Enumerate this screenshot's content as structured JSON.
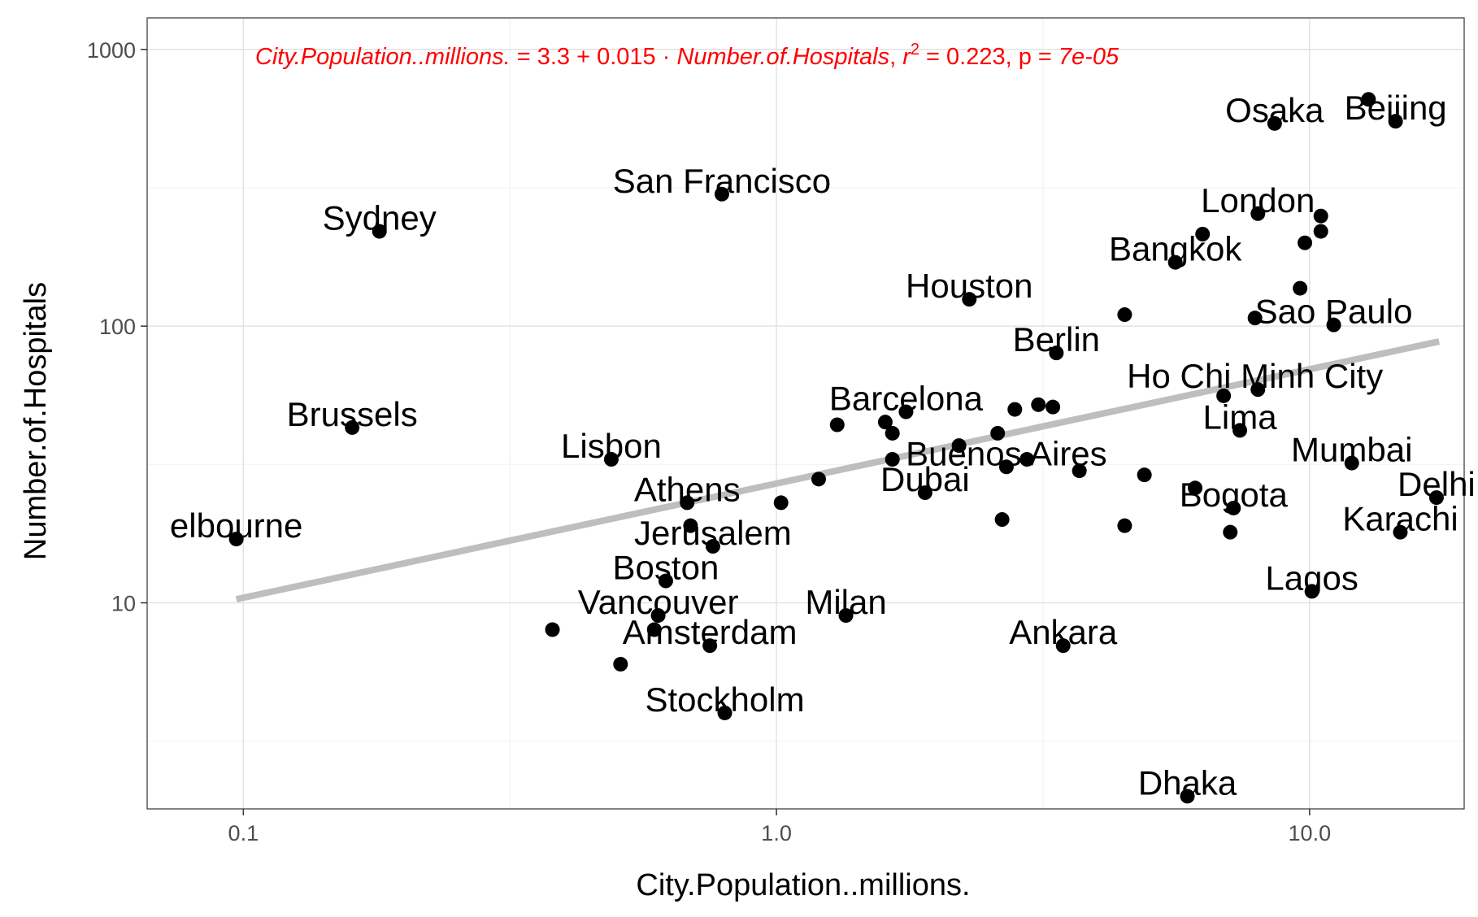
{
  "chart_data": {
    "type": "scatter",
    "xlabel": "City.Population..millions.",
    "ylabel": "Number.of.Hospitals",
    "x_scale": "log10",
    "y_scale": "log10",
    "xlim": [
      0.066,
      19.5
    ],
    "ylim": [
      1.8,
      1300
    ],
    "x_ticks": [
      {
        "value": 0.1,
        "label": "0.1"
      },
      {
        "value": 1,
        "label": "1.0"
      },
      {
        "value": 10,
        "label": "10.0"
      }
    ],
    "y_ticks": [
      {
        "value": 10,
        "label": "10"
      },
      {
        "value": 100,
        "label": "100"
      },
      {
        "value": 1000,
        "label": "1000"
      }
    ],
    "grid": true,
    "annotation": {
      "lhs": "City.Population..millions.",
      "eq_mid": " = 3.3 + 0.015 · ",
      "rhs": "Number.of.Hospitals",
      "r2_sym": "r",
      "r2_exp": "2",
      "r2_val": " = 0.223,  p = ",
      "p_val": "7e-05",
      "color": "#ff0000"
    },
    "trend_line": {
      "color": "#bebebe",
      "x": [
        0.097,
        17.5
      ],
      "y": [
        10.3,
        88
      ]
    },
    "point_color": "#000000",
    "points": [
      {
        "x": 0.097,
        "y": 17
      },
      {
        "x": 0.16,
        "y": 43
      },
      {
        "x": 0.18,
        "y": 220
      },
      {
        "x": 0.38,
        "y": 8
      },
      {
        "x": 0.49,
        "y": 33
      },
      {
        "x": 0.51,
        "y": 6
      },
      {
        "x": 0.59,
        "y": 8
      },
      {
        "x": 0.6,
        "y": 9
      },
      {
        "x": 0.62,
        "y": 12
      },
      {
        "x": 0.68,
        "y": 23
      },
      {
        "x": 0.69,
        "y": 19
      },
      {
        "x": 0.75,
        "y": 7
      },
      {
        "x": 0.76,
        "y": 16
      },
      {
        "x": 0.79,
        "y": 300
      },
      {
        "x": 0.8,
        "y": 4
      },
      {
        "x": 1.02,
        "y": 23
      },
      {
        "x": 1.2,
        "y": 28
      },
      {
        "x": 1.3,
        "y": 44
      },
      {
        "x": 1.35,
        "y": 9
      },
      {
        "x": 1.6,
        "y": 45
      },
      {
        "x": 1.65,
        "y": 41
      },
      {
        "x": 1.65,
        "y": 33
      },
      {
        "x": 1.75,
        "y": 49
      },
      {
        "x": 1.9,
        "y": 25
      },
      {
        "x": 2.2,
        "y": 37
      },
      {
        "x": 2.3,
        "y": 125
      },
      {
        "x": 2.6,
        "y": 41
      },
      {
        "x": 2.65,
        "y": 20
      },
      {
        "x": 2.7,
        "y": 31
      },
      {
        "x": 2.8,
        "y": 50
      },
      {
        "x": 2.95,
        "y": 33
      },
      {
        "x": 3.1,
        "y": 52
      },
      {
        "x": 3.3,
        "y": 51
      },
      {
        "x": 3.35,
        "y": 80
      },
      {
        "x": 3.45,
        "y": 7
      },
      {
        "x": 3.7,
        "y": 30
      },
      {
        "x": 4.5,
        "y": 110
      },
      {
        "x": 4.5,
        "y": 19
      },
      {
        "x": 4.9,
        "y": 29
      },
      {
        "x": 5.6,
        "y": 170
      },
      {
        "x": 5.9,
        "y": 2
      },
      {
        "x": 6.1,
        "y": 26
      },
      {
        "x": 6.3,
        "y": 215
      },
      {
        "x": 6.9,
        "y": 56
      },
      {
        "x": 7.1,
        "y": 18
      },
      {
        "x": 7.2,
        "y": 22
      },
      {
        "x": 7.4,
        "y": 42
      },
      {
        "x": 7.9,
        "y": 107
      },
      {
        "x": 8.0,
        "y": 255
      },
      {
        "x": 8.0,
        "y": 59
      },
      {
        "x": 8.6,
        "y": 540
      },
      {
        "x": 9.6,
        "y": 137
      },
      {
        "x": 9.8,
        "y": 200
      },
      {
        "x": 10.1,
        "y": 11
      },
      {
        "x": 10.5,
        "y": 250
      },
      {
        "x": 10.5,
        "y": 220
      },
      {
        "x": 11.1,
        "y": 101
      },
      {
        "x": 12.0,
        "y": 32
      },
      {
        "x": 12.9,
        "y": 660
      },
      {
        "x": 14.5,
        "y": 550
      },
      {
        "x": 14.8,
        "y": 18
      },
      {
        "x": 17.3,
        "y": 24
      }
    ],
    "labels": [
      {
        "text": "elbourne",
        "x": 0.097,
        "y": 17
      },
      {
        "text": "Brussels",
        "x": 0.16,
        "y": 43
      },
      {
        "text": "Sydney",
        "x": 0.18,
        "y": 220
      },
      {
        "text": "Lisbon",
        "x": 0.49,
        "y": 33
      },
      {
        "text": "Athens",
        "x": 0.68,
        "y": 23
      },
      {
        "text": "Jerusalem",
        "x": 0.76,
        "y": 16
      },
      {
        "text": "Boston",
        "x": 0.62,
        "y": 12
      },
      {
        "text": "Vancouver",
        "x": 0.6,
        "y": 9
      },
      {
        "text": "Amsterdam",
        "x": 0.75,
        "y": 7
      },
      {
        "text": "Stockholm",
        "x": 0.8,
        "y": 4
      },
      {
        "text": "San Francisco",
        "x": 0.79,
        "y": 300
      },
      {
        "text": "Milan",
        "x": 1.35,
        "y": 9
      },
      {
        "text": "Barcelona",
        "x": 1.75,
        "y": 49
      },
      {
        "text": "Dubai",
        "x": 1.9,
        "y": 25
      },
      {
        "text": "Buenos Aires",
        "x": 2.7,
        "y": 31
      },
      {
        "text": "Houston",
        "x": 2.3,
        "y": 125
      },
      {
        "text": "Berlin",
        "x": 3.35,
        "y": 80
      },
      {
        "text": "Ankara",
        "x": 3.45,
        "y": 7
      },
      {
        "text": "Ho Chi Minh City",
        "x": 7.9,
        "y": 59
      },
      {
        "text": "Bangkok",
        "x": 5.6,
        "y": 170
      },
      {
        "text": "London",
        "x": 8.0,
        "y": 255
      },
      {
        "text": "Osaka",
        "x": 8.6,
        "y": 540
      },
      {
        "text": "Beijing",
        "x": 14.5,
        "y": 550
      },
      {
        "text": "Sao Paulo",
        "x": 11.1,
        "y": 101
      },
      {
        "text": "Lima",
        "x": 7.4,
        "y": 42
      },
      {
        "text": "Mumbai",
        "x": 12.0,
        "y": 32
      },
      {
        "text": "Bogota",
        "x": 7.2,
        "y": 22
      },
      {
        "text": "Delhi",
        "x": 17.3,
        "y": 24
      },
      {
        "text": "Karachi",
        "x": 14.8,
        "y": 18
      },
      {
        "text": "Lagos",
        "x": 10.1,
        "y": 11
      },
      {
        "text": "Dhaka",
        "x": 5.9,
        "y": 2
      }
    ]
  }
}
